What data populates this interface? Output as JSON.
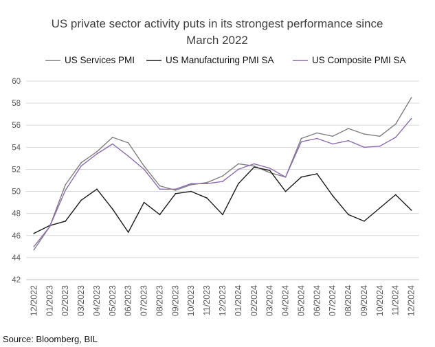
{
  "chart_data": {
    "type": "line",
    "title_lines": [
      "US private sector activity puts in its strongest performance since",
      "March 2022"
    ],
    "categories": [
      "12/2022",
      "01/2023",
      "02/2023",
      "03/2023",
      "04/2023",
      "05/2023",
      "06/2023",
      "07/2023",
      "08/2023",
      "09/2023",
      "10/2023",
      "11/2023",
      "12/2023",
      "01/2024",
      "02/2024",
      "03/2024",
      "04/2024",
      "05/2024",
      "06/2024",
      "07/2024",
      "08/2024",
      "09/2024",
      "10/2024",
      "11/2024",
      "12/2024"
    ],
    "ylim": [
      42,
      60
    ],
    "yticks": [
      "42",
      "44",
      "46",
      "48",
      "50",
      "52",
      "54",
      "56",
      "58",
      "60"
    ],
    "grid": true,
    "legend_position": "top",
    "series": [
      {
        "name": "US Services PMI",
        "color": "#7f7f7f",
        "values": [
          44.7,
          46.8,
          50.6,
          52.6,
          53.6,
          54.9,
          54.4,
          52.3,
          50.5,
          50.1,
          50.6,
          50.8,
          51.4,
          52.5,
          52.3,
          51.7,
          51.3,
          54.8,
          55.3,
          55.0,
          55.7,
          55.2,
          55.0,
          56.1,
          58.5
        ]
      },
      {
        "name": "US Manufacturing PMI SA",
        "color": "#1a1a1a",
        "values": [
          46.2,
          46.9,
          47.3,
          49.2,
          50.2,
          48.4,
          46.3,
          49.0,
          47.9,
          49.8,
          50.0,
          49.4,
          47.9,
          50.7,
          52.2,
          51.9,
          50.0,
          51.3,
          51.6,
          49.6,
          47.9,
          47.3,
          48.5,
          49.7,
          48.3
        ]
      },
      {
        "name": "US Composite PMI SA",
        "color": "#8c6bb1",
        "values": [
          45.0,
          46.8,
          50.1,
          52.3,
          53.4,
          54.3,
          53.2,
          52.0,
          50.2,
          50.2,
          50.7,
          50.7,
          50.9,
          52.0,
          52.5,
          52.1,
          51.3,
          54.5,
          54.8,
          54.3,
          54.6,
          54.0,
          54.1,
          54.9,
          56.6
        ]
      }
    ]
  },
  "footer": {
    "source": "Source: Bloomberg, BIL"
  }
}
